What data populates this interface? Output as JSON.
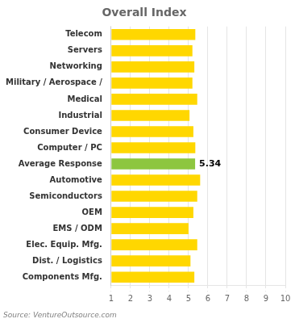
{
  "chart_data": {
    "type": "bar",
    "orientation": "horizontal",
    "title": "Overall Index",
    "categories": [
      "Telecom",
      "Servers",
      "Networking",
      "Military / Aerospace /",
      "Medical",
      "Industrial",
      "Consumer Device",
      "Computer / PC",
      "Average Response",
      "Automotive",
      "Semiconductors",
      "OEM",
      "EMS / ODM",
      "Elec. Equip. Mfg.",
      "Dist. / Logistics",
      "Components Mfg."
    ],
    "values": [
      5.35,
      5.2,
      5.3,
      5.2,
      5.45,
      5.05,
      5.25,
      5.35,
      5.34,
      5.6,
      5.45,
      5.25,
      5.0,
      5.45,
      5.1,
      5.3
    ],
    "colors": [
      "#FFD700",
      "#FFD700",
      "#FFD700",
      "#FFD700",
      "#FFD700",
      "#FFD700",
      "#FFD700",
      "#FFD700",
      "#8DC63F",
      "#FFD700",
      "#FFD700",
      "#FFD700",
      "#FFD700",
      "#FFD700",
      "#FFD700",
      "#FFD700"
    ],
    "xlim": [
      1,
      10
    ],
    "xticks": [
      1,
      2,
      3,
      4,
      5,
      6,
      7,
      8,
      9,
      10
    ],
    "grid": true,
    "annotations": [
      {
        "text": "5.34",
        "category": "Average Response"
      }
    ],
    "source": "Source: VentureOutsource.com"
  }
}
